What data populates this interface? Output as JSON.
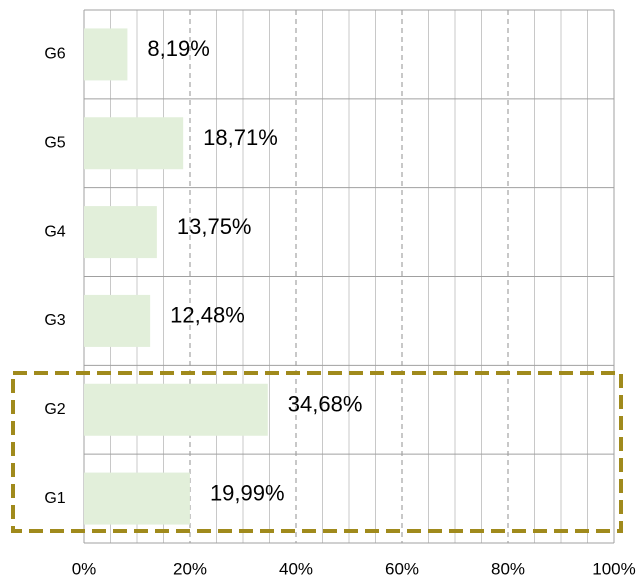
{
  "chart_data": {
    "type": "hbar",
    "categories": [
      "G6",
      "G5",
      "G4",
      "G3",
      "G2",
      "G1"
    ],
    "values": [
      8.19,
      18.71,
      13.75,
      12.48,
      34.68,
      19.99
    ],
    "value_labels": [
      "8,19%",
      "18,71%",
      "13,75%",
      "12,48%",
      "34,68%",
      "19,99%"
    ],
    "color": "#e2efda",
    "xlim": [
      0,
      100
    ],
    "xticks": [
      {
        "value": 0,
        "label": "0%"
      },
      {
        "value": 20,
        "label": "20%"
      },
      {
        "value": 40,
        "label": "40%"
      },
      {
        "value": 60,
        "label": "60%"
      },
      {
        "value": 80,
        "label": "80%"
      },
      {
        "value": 100,
        "label": "100%"
      }
    ],
    "grid": true
  }
}
